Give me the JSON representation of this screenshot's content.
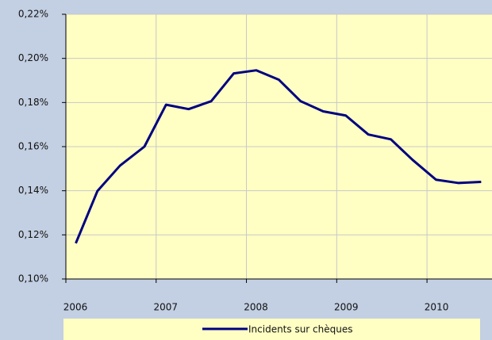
{
  "chart_data": {
    "type": "line",
    "x": [
      2006.11,
      2006.35,
      2006.6,
      2006.87,
      2007.11,
      2007.36,
      2007.61,
      2007.86,
      2008.11,
      2008.36,
      2008.6,
      2008.85,
      2009.1,
      2009.35,
      2009.6,
      2009.84,
      2010.1,
      2010.35,
      2010.6
    ],
    "series": [
      {
        "name": "Incidents sur chèques",
        "color": "#000080",
        "values": [
          0.1162,
          0.1399,
          0.1514,
          0.16,
          0.179,
          0.177,
          0.1806,
          0.1932,
          0.1946,
          0.1903,
          0.1806,
          0.176,
          0.1741,
          0.1655,
          0.1633,
          0.154,
          0.145,
          0.1435,
          0.144
        ]
      }
    ],
    "xlim": [
      2006,
      2010.72
    ],
    "xticks": [
      2006,
      2007,
      2008,
      2009,
      2010
    ],
    "ylim": [
      0.1,
      0.22
    ],
    "yticks": [
      {
        "value": 0.1,
        "label": "0,10%"
      },
      {
        "value": 0.12,
        "label": "0,12%"
      },
      {
        "value": 0.14,
        "label": "0,14%"
      },
      {
        "value": 0.16,
        "label": "0,16%"
      },
      {
        "value": 0.18,
        "label": "0,18%"
      },
      {
        "value": 0.2,
        "label": "0,20%"
      },
      {
        "value": 0.22,
        "label": "0,22%"
      }
    ],
    "grid": true,
    "legend": "bottom"
  }
}
